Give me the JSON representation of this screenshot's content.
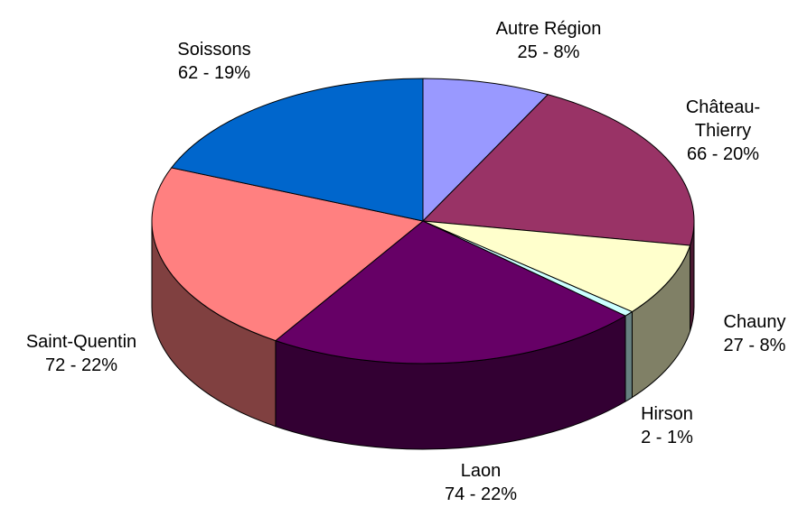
{
  "chart_data": {
    "type": "pie",
    "categories": [
      "Autre Région",
      "Château-Thierry",
      "Chauny",
      "Hirson",
      "Laon",
      "Saint-Quentin",
      "Soissons"
    ],
    "values": [
      25,
      66,
      27,
      2,
      74,
      72,
      62
    ],
    "value_labels": [
      "25 - 8%",
      "66 - 20%",
      "27 - 8%",
      "2 - 1%",
      "74 - 22%",
      "72 - 22%",
      "62 - 19%"
    ],
    "colors": [
      "#9999ff",
      "#993366",
      "#ffffcc",
      "#ccffff",
      "#660066",
      "#ff8080",
      "#0066cc"
    ],
    "three_d": true
  }
}
